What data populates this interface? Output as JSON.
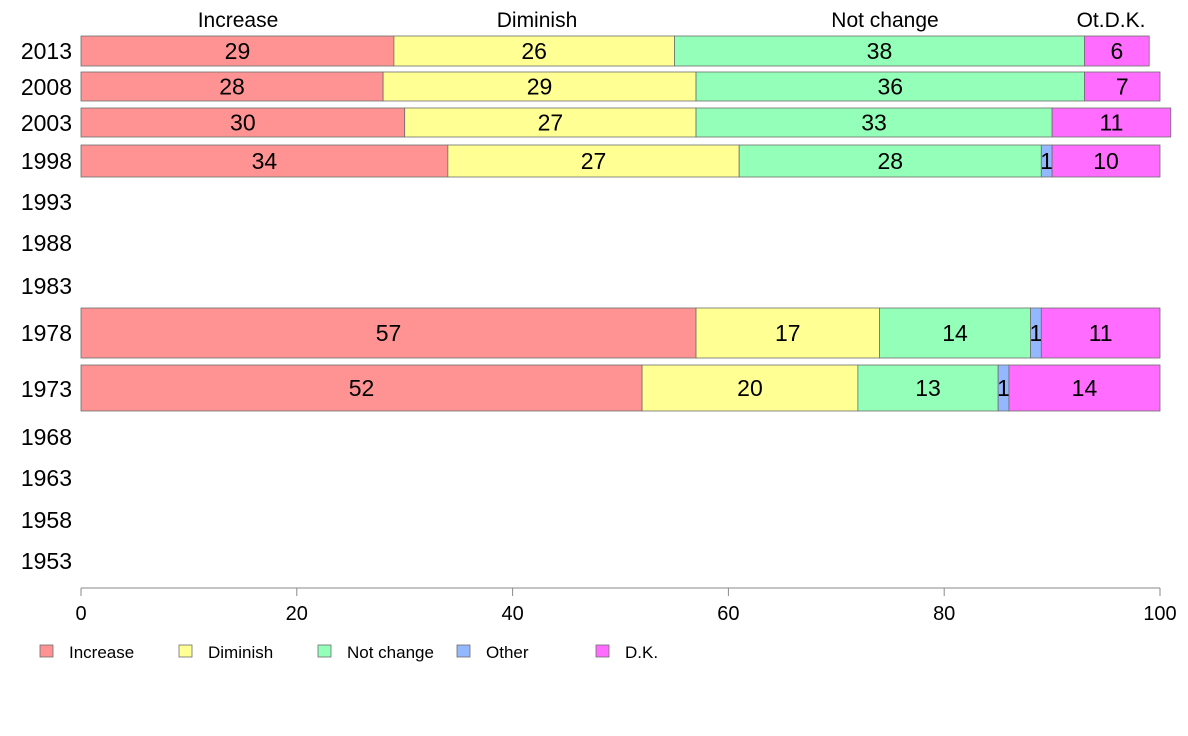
{
  "chart_data": {
    "type": "bar",
    "orientation": "horizontal",
    "stacked": true,
    "column_headers": [
      "Increase",
      "Diminish",
      "Not change",
      "Ot.D.K."
    ],
    "categories": [
      "2013",
      "2008",
      "2003",
      "1998",
      "1993",
      "1988",
      "1983",
      "1978",
      "1973",
      "1968",
      "1963",
      "1958",
      "1953"
    ],
    "series": [
      {
        "name": "Increase",
        "color": "#ff9393",
        "values": [
          29,
          28,
          30,
          34,
          null,
          null,
          null,
          57,
          52,
          null,
          null,
          null,
          null
        ]
      },
      {
        "name": "Diminish",
        "color": "#ffff93",
        "values": [
          26,
          29,
          27,
          27,
          null,
          null,
          null,
          17,
          20,
          null,
          null,
          null,
          null
        ]
      },
      {
        "name": "Not change",
        "color": "#93ffb8",
        "values": [
          38,
          36,
          33,
          28,
          null,
          null,
          null,
          14,
          13,
          null,
          null,
          null,
          null
        ]
      },
      {
        "name": "Other",
        "color": "#93b8ff",
        "values": [
          0,
          0,
          0,
          1,
          null,
          null,
          null,
          1,
          1,
          null,
          null,
          null,
          null
        ]
      },
      {
        "name": "D.K.",
        "color": "#ff6cff",
        "values": [
          6,
          7,
          11,
          10,
          null,
          null,
          null,
          11,
          14,
          null,
          null,
          null,
          null
        ]
      }
    ],
    "xlim": [
      0,
      100
    ],
    "xticks": [
      0,
      20,
      40,
      60,
      80,
      100
    ],
    "grid": false,
    "legend_position": "bottom-left"
  }
}
